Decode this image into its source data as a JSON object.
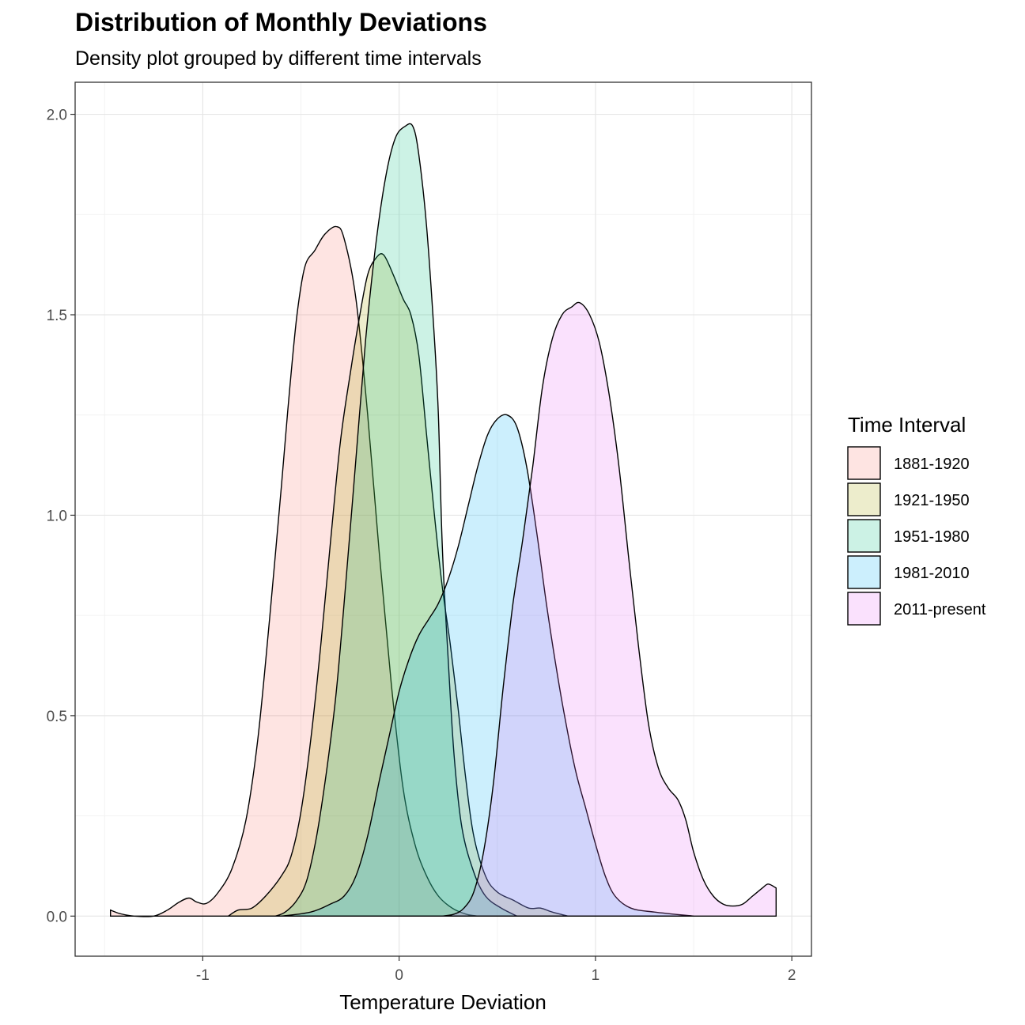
{
  "chart_data": {
    "type": "area",
    "title": "Distribution of Monthly Deviations",
    "subtitle": "Density plot grouped by different time intervals",
    "xlabel": "Temperature Deviation",
    "ylabel": "",
    "xlim": [
      -1.65,
      2.1
    ],
    "ylim": [
      -0.1,
      2.08
    ],
    "x_ticks": [
      -1,
      0,
      1,
      2
    ],
    "x_tick_labels": [
      "-1",
      "0",
      "1",
      "2"
    ],
    "y_ticks": [
      0.0,
      0.5,
      1.0,
      1.5,
      2.0
    ],
    "y_tick_labels": [
      "0.0",
      "0.5",
      "1.0",
      "1.5",
      "2.0"
    ],
    "grid": true,
    "legend": {
      "title": "Time Interval",
      "position": "right"
    },
    "series": [
      {
        "name": "1881-1920",
        "color": "#F8766D",
        "points": [
          [
            -1.47,
            0.015
          ],
          [
            -1.42,
            0.006
          ],
          [
            -1.35,
            0.0
          ],
          [
            -1.25,
            0.0
          ],
          [
            -1.18,
            0.015
          ],
          [
            -1.12,
            0.035
          ],
          [
            -1.07,
            0.045
          ],
          [
            -1.03,
            0.035
          ],
          [
            -0.98,
            0.032
          ],
          [
            -0.92,
            0.06
          ],
          [
            -0.85,
            0.12
          ],
          [
            -0.78,
            0.24
          ],
          [
            -0.72,
            0.44
          ],
          [
            -0.66,
            0.74
          ],
          [
            -0.6,
            1.07
          ],
          [
            -0.56,
            1.3
          ],
          [
            -0.52,
            1.5
          ],
          [
            -0.48,
            1.62
          ],
          [
            -0.43,
            1.66
          ],
          [
            -0.38,
            1.7
          ],
          [
            -0.32,
            1.72
          ],
          [
            -0.28,
            1.69
          ],
          [
            -0.22,
            1.54
          ],
          [
            -0.16,
            1.25
          ],
          [
            -0.1,
            0.9
          ],
          [
            -0.04,
            0.58
          ],
          [
            0.02,
            0.32
          ],
          [
            0.08,
            0.18
          ],
          [
            0.14,
            0.1
          ],
          [
            0.2,
            0.05
          ],
          [
            0.27,
            0.02
          ],
          [
            0.34,
            0.005
          ],
          [
            0.4,
            0.0
          ]
        ]
      },
      {
        "name": "1921-1950",
        "color": "#A3A500",
        "points": [
          [
            -0.87,
            0.0
          ],
          [
            -0.82,
            0.015
          ],
          [
            -0.75,
            0.02
          ],
          [
            -0.68,
            0.05
          ],
          [
            -0.6,
            0.1
          ],
          [
            -0.55,
            0.15
          ],
          [
            -0.5,
            0.26
          ],
          [
            -0.45,
            0.44
          ],
          [
            -0.4,
            0.67
          ],
          [
            -0.35,
            0.93
          ],
          [
            -0.3,
            1.18
          ],
          [
            -0.25,
            1.35
          ],
          [
            -0.2,
            1.5
          ],
          [
            -0.16,
            1.6
          ],
          [
            -0.12,
            1.64
          ],
          [
            -0.08,
            1.65
          ],
          [
            -0.03,
            1.6
          ],
          [
            0.02,
            1.54
          ],
          [
            0.06,
            1.5
          ],
          [
            0.1,
            1.4
          ],
          [
            0.14,
            1.2
          ],
          [
            0.18,
            1.0
          ],
          [
            0.22,
            0.82
          ],
          [
            0.26,
            0.68
          ],
          [
            0.3,
            0.52
          ],
          [
            0.34,
            0.34
          ],
          [
            0.38,
            0.2
          ],
          [
            0.44,
            0.1
          ],
          [
            0.5,
            0.06
          ],
          [
            0.58,
            0.04
          ],
          [
            0.66,
            0.02
          ],
          [
            0.72,
            0.02
          ],
          [
            0.78,
            0.01
          ],
          [
            0.86,
            0.0
          ]
        ]
      },
      {
        "name": "1951-1980",
        "color": "#00BF7D",
        "points": [
          [
            -0.63,
            0.0
          ],
          [
            -0.58,
            0.01
          ],
          [
            -0.52,
            0.04
          ],
          [
            -0.47,
            0.09
          ],
          [
            -0.42,
            0.2
          ],
          [
            -0.37,
            0.36
          ],
          [
            -0.32,
            0.56
          ],
          [
            -0.27,
            0.84
          ],
          [
            -0.22,
            1.14
          ],
          [
            -0.17,
            1.44
          ],
          [
            -0.12,
            1.67
          ],
          [
            -0.07,
            1.84
          ],
          [
            -0.02,
            1.94
          ],
          [
            0.03,
            1.97
          ],
          [
            0.07,
            1.97
          ],
          [
            0.1,
            1.9
          ],
          [
            0.14,
            1.72
          ],
          [
            0.18,
            1.44
          ],
          [
            0.2,
            1.25
          ],
          [
            0.22,
            0.92
          ],
          [
            0.25,
            0.64
          ],
          [
            0.28,
            0.4
          ],
          [
            0.32,
            0.22
          ],
          [
            0.38,
            0.11
          ],
          [
            0.44,
            0.05
          ],
          [
            0.52,
            0.02
          ],
          [
            0.6,
            0.0
          ]
        ]
      },
      {
        "name": "1981-2010",
        "color": "#00B0F6",
        "points": [
          [
            -0.6,
            0.0
          ],
          [
            -0.45,
            0.01
          ],
          [
            -0.35,
            0.03
          ],
          [
            -0.28,
            0.05
          ],
          [
            -0.22,
            0.1
          ],
          [
            -0.16,
            0.2
          ],
          [
            -0.1,
            0.34
          ],
          [
            -0.05,
            0.45
          ],
          [
            0.0,
            0.56
          ],
          [
            0.05,
            0.64
          ],
          [
            0.1,
            0.7
          ],
          [
            0.15,
            0.74
          ],
          [
            0.2,
            0.78
          ],
          [
            0.25,
            0.84
          ],
          [
            0.3,
            0.92
          ],
          [
            0.35,
            1.02
          ],
          [
            0.4,
            1.12
          ],
          [
            0.45,
            1.2
          ],
          [
            0.5,
            1.24
          ],
          [
            0.55,
            1.25
          ],
          [
            0.6,
            1.22
          ],
          [
            0.65,
            1.12
          ],
          [
            0.7,
            0.96
          ],
          [
            0.75,
            0.78
          ],
          [
            0.8,
            0.62
          ],
          [
            0.85,
            0.48
          ],
          [
            0.9,
            0.36
          ],
          [
            0.95,
            0.27
          ],
          [
            1.0,
            0.18
          ],
          [
            1.05,
            0.1
          ],
          [
            1.1,
            0.05
          ],
          [
            1.18,
            0.02
          ],
          [
            1.3,
            0.01
          ],
          [
            1.5,
            0.0
          ]
        ]
      },
      {
        "name": "2011-present",
        "color": "#E76BF3",
        "points": [
          [
            0.22,
            0.0
          ],
          [
            0.28,
            0.005
          ],
          [
            0.33,
            0.02
          ],
          [
            0.38,
            0.06
          ],
          [
            0.43,
            0.16
          ],
          [
            0.48,
            0.33
          ],
          [
            0.53,
            0.57
          ],
          [
            0.58,
            0.78
          ],
          [
            0.63,
            0.94
          ],
          [
            0.68,
            1.12
          ],
          [
            0.73,
            1.32
          ],
          [
            0.78,
            1.44
          ],
          [
            0.83,
            1.5
          ],
          [
            0.88,
            1.52
          ],
          [
            0.92,
            1.53
          ],
          [
            0.97,
            1.5
          ],
          [
            1.02,
            1.43
          ],
          [
            1.07,
            1.3
          ],
          [
            1.12,
            1.12
          ],
          [
            1.17,
            0.89
          ],
          [
            1.22,
            0.67
          ],
          [
            1.27,
            0.48
          ],
          [
            1.32,
            0.37
          ],
          [
            1.37,
            0.32
          ],
          [
            1.42,
            0.29
          ],
          [
            1.46,
            0.24
          ],
          [
            1.5,
            0.16
          ],
          [
            1.55,
            0.09
          ],
          [
            1.6,
            0.05
          ],
          [
            1.65,
            0.03
          ],
          [
            1.7,
            0.025
          ],
          [
            1.75,
            0.03
          ],
          [
            1.8,
            0.05
          ],
          [
            1.85,
            0.07
          ],
          [
            1.88,
            0.08
          ],
          [
            1.92,
            0.07
          ]
        ]
      }
    ]
  }
}
